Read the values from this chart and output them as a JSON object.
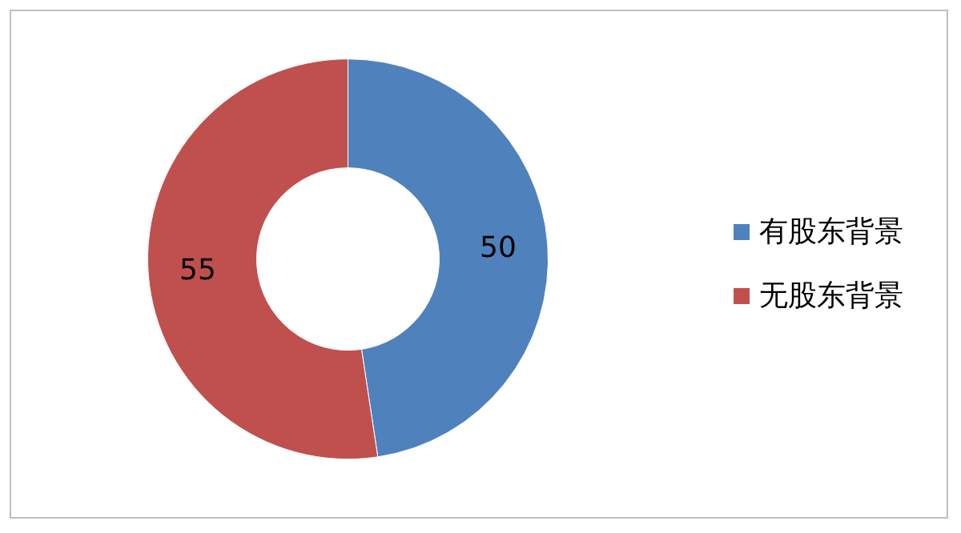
{
  "chart_data": {
    "type": "donut",
    "categories": [
      "有股东背景",
      "无股东背景"
    ],
    "values": [
      50,
      55
    ],
    "colors": [
      "#4f81bd",
      "#c0504d"
    ],
    "data_labels": true,
    "legend": "right"
  }
}
